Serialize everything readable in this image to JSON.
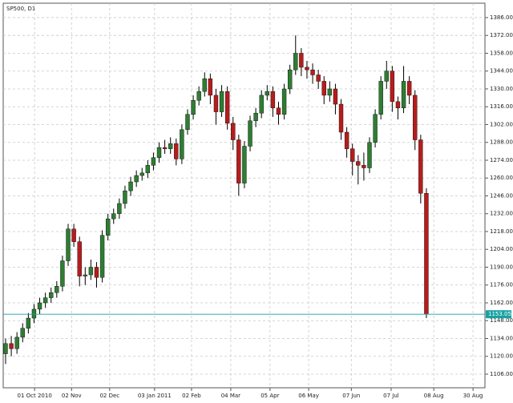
{
  "chart_data": {
    "type": "candlestick",
    "title": "SP500, D1",
    "up_color": "#2e7d32",
    "down_color": "#b71c1c",
    "wick_color": "#000000",
    "last_color": "#17a2a2",
    "grid": true,
    "open": [
      1122,
      1130,
      1126,
      1135,
      1142,
      1150,
      1157,
      1162,
      1166,
      1170,
      1175,
      1195,
      1220,
      1210,
      1183,
      1184,
      1190,
      1182,
      1215,
      1228,
      1232,
      1240,
      1250,
      1257,
      1262,
      1264,
      1270,
      1276,
      1284,
      1283,
      1287,
      1275,
      1298,
      1310,
      1321,
      1328,
      1338,
      1325,
      1312,
      1328,
      1303,
      1290,
      1256,
      1285,
      1305,
      1311,
      1325,
      1328,
      1315,
      1310,
      1330,
      1345,
      1358,
      1347,
      1345,
      1341,
      1336,
      1325,
      1330,
      1318,
      1296,
      1283,
      1273,
      1270,
      1268,
      1288,
      1310,
      1336,
      1344,
      1320,
      1315,
      1336,
      1325,
      1290,
      1248
    ],
    "high": [
      1134,
      1136,
      1139,
      1146,
      1154,
      1161,
      1166,
      1170,
      1174,
      1179,
      1199,
      1224,
      1224,
      1214,
      1190,
      1196,
      1194,
      1219,
      1232,
      1236,
      1244,
      1254,
      1261,
      1266,
      1268,
      1274,
      1280,
      1288,
      1290,
      1292,
      1291,
      1302,
      1314,
      1325,
      1332,
      1343,
      1342,
      1330,
      1333,
      1332,
      1308,
      1294,
      1289,
      1309,
      1315,
      1329,
      1333,
      1332,
      1320,
      1334,
      1349,
      1372,
      1362,
      1352,
      1350,
      1345,
      1340,
      1336,
      1334,
      1322,
      1300,
      1287,
      1278,
      1280,
      1292,
      1314,
      1340,
      1352,
      1348,
      1324,
      1348,
      1340,
      1329,
      1294,
      1252
    ],
    "low": [
      1114,
      1120,
      1122,
      1131,
      1138,
      1146,
      1153,
      1158,
      1162,
      1166,
      1171,
      1191,
      1206,
      1175,
      1176,
      1180,
      1174,
      1178,
      1211,
      1224,
      1228,
      1236,
      1246,
      1253,
      1258,
      1260,
      1266,
      1272,
      1279,
      1279,
      1270,
      1271,
      1294,
      1306,
      1317,
      1324,
      1318,
      1302,
      1308,
      1298,
      1282,
      1246,
      1252,
      1281,
      1300,
      1307,
      1321,
      1308,
      1302,
      1306,
      1326,
      1341,
      1340,
      1338,
      1334,
      1330,
      1318,
      1320,
      1310,
      1290,
      1276,
      1262,
      1255,
      1258,
      1264,
      1284,
      1306,
      1330,
      1312,
      1306,
      1311,
      1318,
      1282,
      1240,
      1150
    ],
    "close": [
      1130,
      1126,
      1135,
      1142,
      1150,
      1157,
      1162,
      1166,
      1170,
      1175,
      1195,
      1220,
      1210,
      1183,
      1184,
      1190,
      1182,
      1215,
      1228,
      1232,
      1240,
      1250,
      1257,
      1262,
      1264,
      1270,
      1276,
      1284,
      1283,
      1287,
      1275,
      1298,
      1310,
      1321,
      1328,
      1338,
      1325,
      1312,
      1328,
      1303,
      1290,
      1256,
      1285,
      1305,
      1311,
      1325,
      1328,
      1315,
      1310,
      1330,
      1345,
      1358,
      1347,
      1345,
      1341,
      1336,
      1325,
      1330,
      1318,
      1296,
      1283,
      1273,
      1270,
      1268,
      1288,
      1310,
      1336,
      1344,
      1320,
      1315,
      1336,
      1325,
      1290,
      1248,
      1153
    ],
    "last_price": 1153.05,
    "xlim": [
      -0.42,
      84.3
    ],
    "xticks": [
      {
        "value": 5.1,
        "label": "01 Oct 2010"
      },
      {
        "value": 11.6,
        "label": "02 Nov"
      },
      {
        "value": 18.3,
        "label": "02 Dec"
      },
      {
        "value": 26.2,
        "label": "03 Jan 2011"
      },
      {
        "value": 32.7,
        "label": "02 Feb"
      },
      {
        "value": 39.6,
        "label": "04 Mar"
      },
      {
        "value": 46.5,
        "label": "05 Apr"
      },
      {
        "value": 53.3,
        "label": "06 May"
      },
      {
        "value": 60.8,
        "label": "07 Jun"
      },
      {
        "value": 67.8,
        "label": "07 Jul"
      },
      {
        "value": 75.3,
        "label": "08 Aug"
      },
      {
        "value": 82.2,
        "label": "30 Aug"
      }
    ],
    "ylim": [
      1095.3,
      1397.3
    ],
    "yticks": [
      {
        "value": 1106,
        "label": "1106.00"
      },
      {
        "value": 1120,
        "label": "1120.00"
      },
      {
        "value": 1134,
        "label": "1134.00"
      },
      {
        "value": 1148,
        "label": "1148.00"
      },
      {
        "value": 1162,
        "label": "1162.00"
      },
      {
        "value": 1176,
        "label": "1176.00"
      },
      {
        "value": 1190,
        "label": "1190.00"
      },
      {
        "value": 1204,
        "label": "1204.00"
      },
      {
        "value": 1218,
        "label": "1218.00"
      },
      {
        "value": 1232,
        "label": "1232.00"
      },
      {
        "value": 1246,
        "label": "1246.00"
      },
      {
        "value": 1260,
        "label": "1260.00"
      },
      {
        "value": 1274,
        "label": "1274.00"
      },
      {
        "value": 1288,
        "label": "1288.00"
      },
      {
        "value": 1302,
        "label": "1302.00"
      },
      {
        "value": 1316,
        "label": "1316.00"
      },
      {
        "value": 1330,
        "label": "1330.00"
      },
      {
        "value": 1344,
        "label": "1344.00"
      },
      {
        "value": 1358,
        "label": "1358.00"
      },
      {
        "value": 1372,
        "label": "1372.00"
      },
      {
        "value": 1386,
        "label": "1386.00"
      }
    ]
  }
}
